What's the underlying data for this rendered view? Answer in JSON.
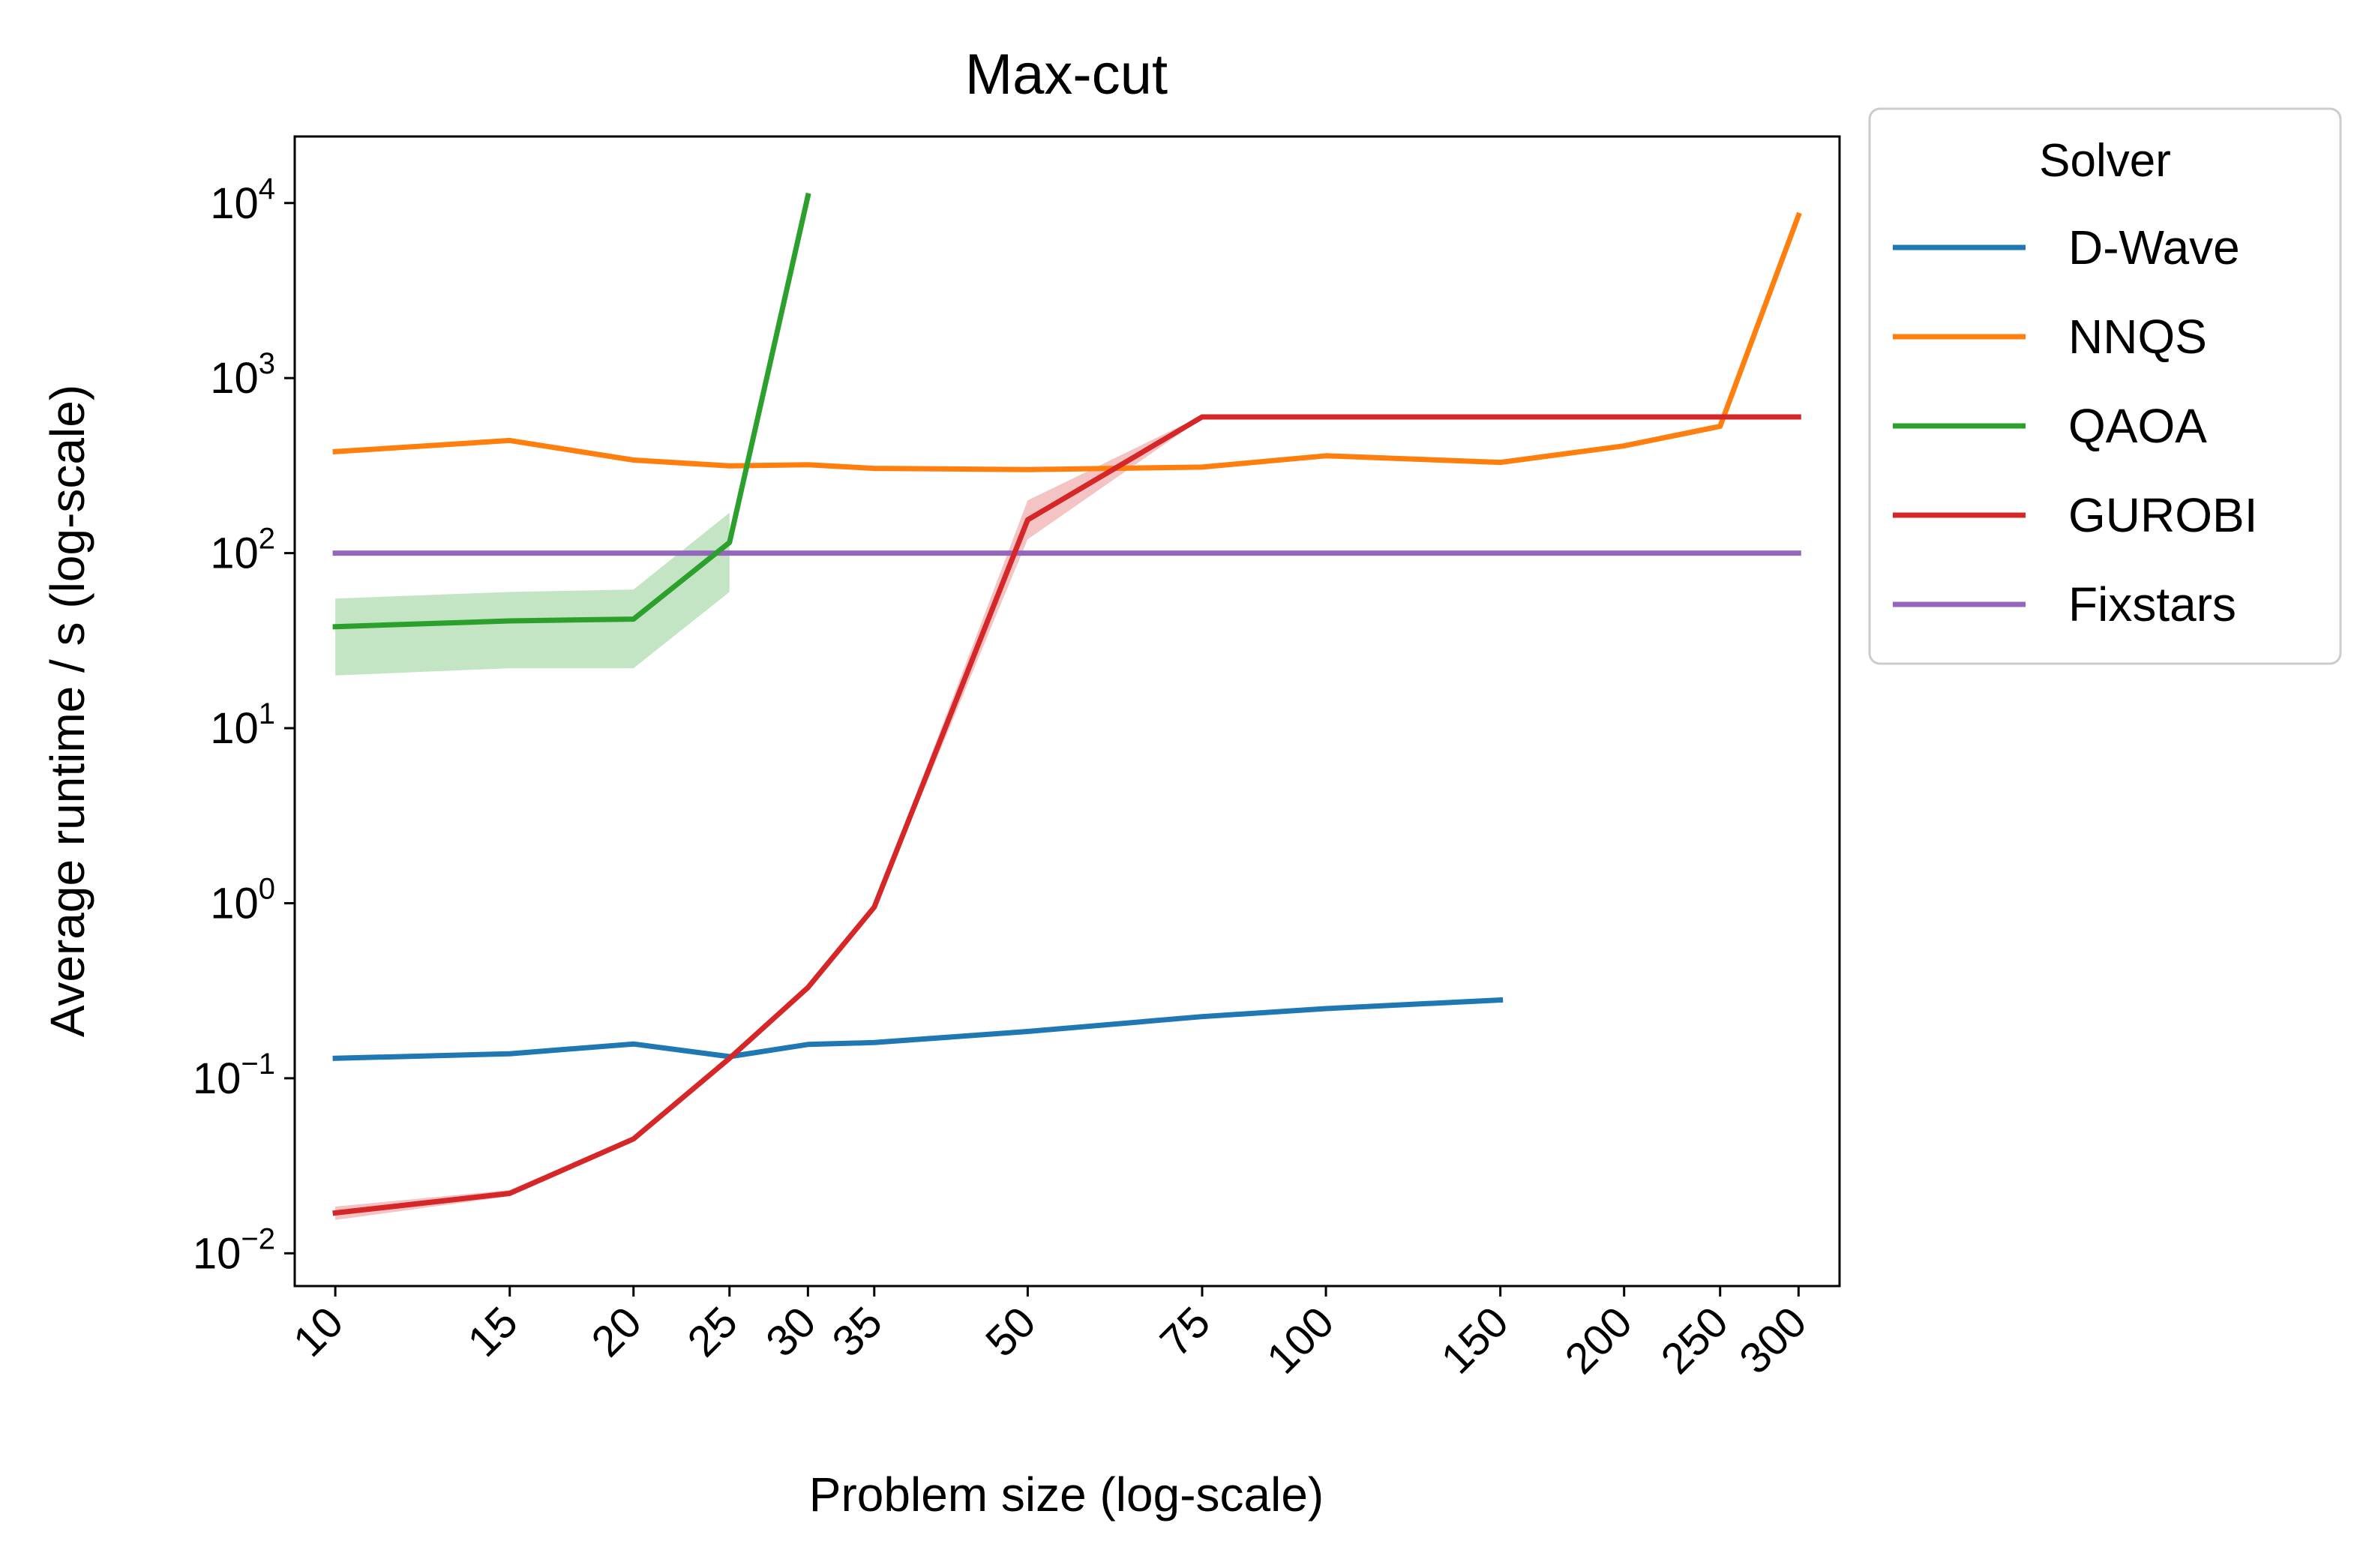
{
  "chart_data": {
    "type": "line",
    "title": "Max-cut",
    "xlabel": "Problem size (log-scale)",
    "ylabel": "Average runtime / s (log-scale)",
    "xscale": "log",
    "yscale": "log",
    "xlim": [
      9.1,
      330
    ],
    "ylim": [
      0.0065,
      24000
    ],
    "xticks": [
      10,
      15,
      20,
      25,
      30,
      35,
      50,
      75,
      100,
      150,
      200,
      250,
      300
    ],
    "xtick_labels": [
      "10",
      "15",
      "20",
      "25",
      "30",
      "35",
      "50",
      "75",
      "100",
      "150",
      "200",
      "250",
      "300"
    ],
    "yticks": [
      {
        "value": 0.01,
        "base": "10",
        "exp": "−2"
      },
      {
        "value": 0.1,
        "base": "10",
        "exp": "−1"
      },
      {
        "value": 1,
        "base": "10",
        "exp": "0"
      },
      {
        "value": 10,
        "base": "10",
        "exp": "1"
      },
      {
        "value": 100,
        "base": "10",
        "exp": "2"
      },
      {
        "value": 1000,
        "base": "10",
        "exp": "3"
      },
      {
        "value": 10000,
        "base": "10",
        "exp": "4"
      }
    ],
    "grid": false,
    "legend": {
      "title": "Solver",
      "placement": "outside-top-right"
    },
    "series": [
      {
        "name": "D-Wave",
        "color": "#1f77b4",
        "x": [
          10,
          15,
          20,
          25,
          30,
          35,
          50,
          75,
          100,
          150
        ],
        "y": [
          0.13,
          0.138,
          0.157,
          0.133,
          0.156,
          0.16,
          0.185,
          0.225,
          0.25,
          0.28
        ]
      },
      {
        "name": "NNQS",
        "color": "#ff7f0e",
        "x": [
          10,
          15,
          20,
          25,
          30,
          35,
          50,
          75,
          100,
          150,
          200,
          250,
          300
        ],
        "y": [
          380,
          440,
          340,
          315,
          320,
          305,
          300,
          310,
          360,
          330,
          410,
          530,
          8500
        ]
      },
      {
        "name": "QAOA",
        "color": "#2ca02c",
        "x": [
          10,
          15,
          20,
          25,
          30
        ],
        "y": [
          38,
          41,
          42,
          115,
          11000
        ],
        "band_x": [
          10,
          15,
          20,
          25
        ],
        "band_low": [
          20,
          22,
          22,
          60
        ],
        "band_high": [
          55,
          60,
          62,
          170
        ]
      },
      {
        "name": "GUROBI",
        "color": "#d62728",
        "x": [
          10,
          15,
          20,
          25,
          30,
          35,
          50,
          75,
          100,
          150,
          200,
          250,
          300
        ],
        "y": [
          0.017,
          0.022,
          0.045,
          0.13,
          0.33,
          0.95,
          155,
          600,
          600,
          600,
          600,
          600,
          600
        ],
        "band_x": [
          10,
          15,
          20,
          25,
          30,
          35,
          50,
          75
        ],
        "band_low": [
          0.0155,
          0.0212,
          0.0435,
          0.127,
          0.32,
          0.92,
          120,
          590
        ],
        "band_high": [
          0.0185,
          0.023,
          0.0465,
          0.133,
          0.34,
          0.98,
          200,
          610
        ]
      },
      {
        "name": "Fixstars",
        "color": "#9467bd",
        "x": [
          10,
          300
        ],
        "y": [
          100,
          100
        ]
      }
    ]
  }
}
